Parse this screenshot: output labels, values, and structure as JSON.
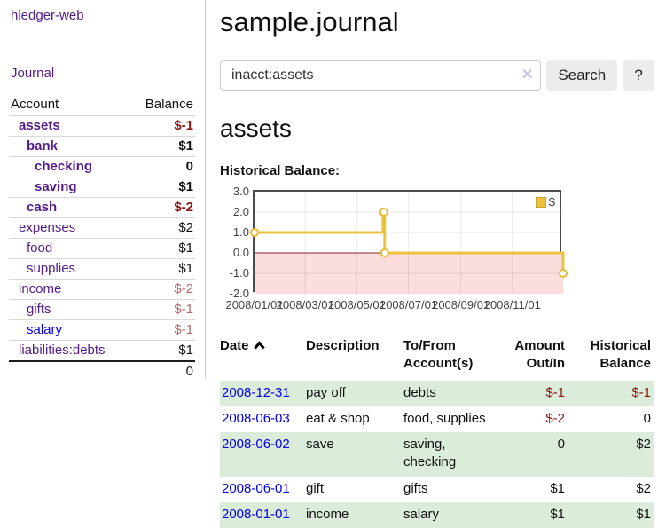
{
  "sidebar": {
    "app_title": "hledger-web",
    "journal_link": "Journal",
    "accounts_header": {
      "account": "Account",
      "balance": "Balance"
    },
    "accounts": [
      {
        "name": "assets",
        "balance": "$-1",
        "level": 1,
        "in_query": true,
        "balance_class": "neg-strong",
        "link_color": "purple"
      },
      {
        "name": "bank",
        "balance": "$1",
        "level": 2,
        "in_query": true,
        "balance_class": "pos",
        "link_color": "purple"
      },
      {
        "name": "checking",
        "balance": "0",
        "level": 3,
        "in_query": true,
        "balance_class": "pos",
        "link_color": "purple"
      },
      {
        "name": "saving",
        "balance": "$1",
        "level": 3,
        "in_query": true,
        "balance_class": "pos",
        "link_color": "purple"
      },
      {
        "name": "cash",
        "balance": "$-2",
        "level": 2,
        "in_query": true,
        "balance_class": "neg-strong",
        "link_color": "purple"
      },
      {
        "name": "expenses",
        "balance": "$2",
        "level": 1,
        "in_query": false,
        "balance_class": "pos",
        "link_color": "purple"
      },
      {
        "name": "food",
        "balance": "$1",
        "level": 2,
        "in_query": false,
        "balance_class": "pos",
        "link_color": "purple"
      },
      {
        "name": "supplies",
        "balance": "$1",
        "level": 2,
        "in_query": false,
        "balance_class": "pos",
        "link_color": "purple"
      },
      {
        "name": "income",
        "balance": "$-2",
        "level": 1,
        "in_query": false,
        "balance_class": "neg-soft",
        "link_color": "purple"
      },
      {
        "name": "gifts",
        "balance": "$-1",
        "level": 2,
        "in_query": false,
        "balance_class": "neg-soft",
        "link_color": "purple"
      },
      {
        "name": "salary",
        "balance": "$-1",
        "level": 2,
        "in_query": false,
        "balance_class": "neg-soft",
        "link_color": "blue"
      },
      {
        "name": "liabilities:debts",
        "balance": "$1",
        "level": 1,
        "in_query": false,
        "balance_class": "pos",
        "link_color": "purple"
      }
    ],
    "total": "0"
  },
  "main": {
    "title": "sample.journal",
    "search": {
      "value": "inacct:assets",
      "clear_icon": "✕",
      "search_label": "Search",
      "help_label": "?"
    },
    "account_heading": "assets",
    "chart_label": "Historical Balance:"
  },
  "chart_data": {
    "type": "line",
    "title": "Historical Balance:",
    "step": true,
    "series": [
      {
        "name": "$",
        "color": "#edc240",
        "points": [
          [
            "2008-01-01",
            1
          ],
          [
            "2008-06-01",
            2
          ],
          [
            "2008-06-02",
            2
          ],
          [
            "2008-06-03",
            0
          ],
          [
            "2008-12-31",
            -1
          ]
        ]
      }
    ],
    "x_ticks": [
      "2008/01/01",
      "2008/03/01",
      "2008/05/01",
      "2008/07/01",
      "2008/09/01",
      "2008/11/01"
    ],
    "y_ticks": [
      "3.0",
      "2.0",
      "1.0",
      "0.0",
      "-1.0",
      "-2.0"
    ],
    "ylim": [
      -2,
      3
    ],
    "xlim": [
      "2008-01-01",
      "2008-12-31"
    ],
    "grid": true,
    "legend_position": "top-right",
    "negative_region_color": "#fbdddd",
    "zero_line_color": "#8b2626",
    "marker": {
      "fill": "#ffffff",
      "stroke": "#e8bc37"
    }
  },
  "register": {
    "headers": {
      "date": "Date",
      "description": "Description",
      "accounts": "To/From Account(s)",
      "amount": "Amount Out/In",
      "balance": "Historical Balance"
    },
    "sort": {
      "column": "date",
      "direction": "asc"
    },
    "rows": [
      {
        "date": "2008-12-31",
        "description": "pay off",
        "accounts": "debts",
        "amount": "$-1",
        "amount_neg": true,
        "balance": "$-1",
        "balance_neg": true
      },
      {
        "date": "2008-06-03",
        "description": "eat & shop",
        "accounts": "food, supplies",
        "amount": "$-2",
        "amount_neg": true,
        "balance": "0",
        "balance_neg": false
      },
      {
        "date": "2008-06-02",
        "description": "save",
        "accounts": "saving, checking",
        "amount": "0",
        "amount_neg": false,
        "balance": "$2",
        "balance_neg": false
      },
      {
        "date": "2008-06-01",
        "description": "gift",
        "accounts": "gifts",
        "amount": "$1",
        "amount_neg": false,
        "balance": "$2",
        "balance_neg": false
      },
      {
        "date": "2008-01-01",
        "description": "income",
        "accounts": "salary",
        "amount": "$1",
        "amount_neg": false,
        "balance": "$1",
        "balance_neg": false
      }
    ]
  }
}
